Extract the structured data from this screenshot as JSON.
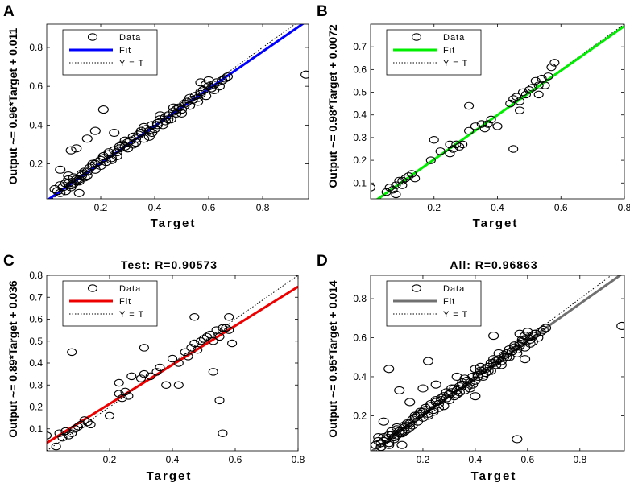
{
  "figure": {
    "legend_labels": [
      "Data",
      "Fit",
      "Y = T"
    ]
  },
  "chart_data": [
    {
      "panel": "A",
      "type": "scatter",
      "title": "",
      "xlabel": "Target",
      "ylabel": "Output ~= 0.96*Target + 0.011",
      "xlim": [
        0.0,
        0.97
      ],
      "ylim": [
        0.02,
        0.92
      ],
      "xticks": [
        0.2,
        0.4,
        0.6,
        0.8
      ],
      "yticks": [
        0.2,
        0.4,
        0.6,
        0.8
      ],
      "fit": {
        "slope": 0.96,
        "intercept": 0.011,
        "color": "#0000ff"
      },
      "legend": {
        "entries": [
          "Data",
          "Fit",
          "Y = T"
        ],
        "position": "top-left"
      },
      "points_mode": "dense",
      "points_x": [
        0.03,
        0.04,
        0.05,
        0.06,
        0.07,
        0.07,
        0.08,
        0.09,
        0.1,
        0.1,
        0.11,
        0.12,
        0.13,
        0.13,
        0.14,
        0.15,
        0.16,
        0.17,
        0.18,
        0.19,
        0.2,
        0.21,
        0.22,
        0.23,
        0.24,
        0.25,
        0.26,
        0.27,
        0.28,
        0.29,
        0.3,
        0.31,
        0.32,
        0.33,
        0.34,
        0.35,
        0.36,
        0.37,
        0.38,
        0.39,
        0.4,
        0.41,
        0.42,
        0.43,
        0.44,
        0.45,
        0.46,
        0.47,
        0.48,
        0.49,
        0.5,
        0.51,
        0.52,
        0.53,
        0.54,
        0.55,
        0.56,
        0.57,
        0.58,
        0.59,
        0.6,
        0.61,
        0.62,
        0.63,
        0.64,
        0.65,
        0.66,
        0.67,
        0.05,
        0.08,
        0.11,
        0.14,
        0.17,
        0.2,
        0.23,
        0.26,
        0.29,
        0.32,
        0.35,
        0.38,
        0.41,
        0.44,
        0.47,
        0.5,
        0.53,
        0.56,
        0.59,
        0.62,
        0.09,
        0.12,
        0.15,
        0.18,
        0.21,
        0.24,
        0.27,
        0.3,
        0.33,
        0.36,
        0.39,
        0.42,
        0.45,
        0.48,
        0.51,
        0.54,
        0.57,
        0.6
      ],
      "points_y": [
        0.07,
        0.06,
        0.09,
        0.08,
        0.1,
        0.06,
        0.12,
        0.09,
        0.13,
        0.1,
        0.11,
        0.12,
        0.14,
        0.15,
        0.13,
        0.16,
        0.18,
        0.2,
        0.17,
        0.21,
        0.22,
        0.24,
        0.21,
        0.25,
        0.23,
        0.27,
        0.26,
        0.28,
        0.3,
        0.29,
        0.31,
        0.32,
        0.34,
        0.31,
        0.35,
        0.36,
        0.33,
        0.38,
        0.37,
        0.4,
        0.38,
        0.41,
        0.43,
        0.4,
        0.44,
        0.45,
        0.43,
        0.47,
        0.46,
        0.49,
        0.48,
        0.5,
        0.52,
        0.5,
        0.53,
        0.55,
        0.54,
        0.56,
        0.58,
        0.55,
        0.6,
        0.59,
        0.61,
        0.62,
        0.6,
        0.63,
        0.64,
        0.65,
        0.05,
        0.1,
        0.12,
        0.16,
        0.19,
        0.19,
        0.26,
        0.24,
        0.32,
        0.3,
        0.37,
        0.34,
        0.4,
        0.42,
        0.49,
        0.46,
        0.54,
        0.52,
        0.61,
        0.58,
        0.08,
        0.11,
        0.14,
        0.2,
        0.23,
        0.22,
        0.29,
        0.28,
        0.33,
        0.39,
        0.36,
        0.45,
        0.43,
        0.48,
        0.51,
        0.53,
        0.57,
        0.63
      ],
      "outliers": [
        [
          0.09,
          0.27
        ],
        [
          0.15,
          0.33
        ],
        [
          0.21,
          0.48
        ],
        [
          0.05,
          0.17
        ],
        [
          0.11,
          0.28
        ],
        [
          0.18,
          0.37
        ],
        [
          0.25,
          0.36
        ],
        [
          0.12,
          0.05
        ],
        [
          0.08,
          0.14
        ],
        [
          0.96,
          0.66
        ],
        [
          0.57,
          0.62
        ]
      ]
    },
    {
      "panel": "B",
      "type": "scatter",
      "title": "",
      "xlabel": "Target",
      "ylabel": "Output ~= 0.98*Target + 0.0072",
      "xlim": [
        0.0,
        0.8
      ],
      "ylim": [
        0.03,
        0.8
      ],
      "xticks": [
        0.2,
        0.4,
        0.6,
        0.8
      ],
      "yticks": [
        0.1,
        0.2,
        0.3,
        0.4,
        0.5,
        0.6,
        0.7
      ],
      "fit": {
        "slope": 0.98,
        "intercept": 0.0072,
        "color": "#00ee00"
      },
      "legend": {
        "entries": [
          "Data",
          "Fit",
          "Y = T"
        ],
        "position": "top-left"
      },
      "points_mode": "sparse",
      "points_x": [
        0.05,
        0.06,
        0.07,
        0.08,
        0.09,
        0.1,
        0.11,
        0.12,
        0.13,
        0.14,
        0.19,
        0.22,
        0.25,
        0.26,
        0.28,
        0.29,
        0.31,
        0.33,
        0.35,
        0.36,
        0.37,
        0.38,
        0.44,
        0.45,
        0.46,
        0.47,
        0.48,
        0.49,
        0.5,
        0.51,
        0.52,
        0.53,
        0.54,
        0.55,
        0.56,
        0.57,
        0.58
      ],
      "points_y": [
        0.06,
        0.08,
        0.07,
        0.09,
        0.11,
        0.09,
        0.12,
        0.13,
        0.14,
        0.12,
        0.2,
        0.24,
        0.23,
        0.25,
        0.26,
        0.27,
        0.33,
        0.35,
        0.36,
        0.34,
        0.36,
        0.38,
        0.45,
        0.47,
        0.48,
        0.46,
        0.5,
        0.49,
        0.51,
        0.52,
        0.55,
        0.53,
        0.56,
        0.53,
        0.57,
        0.61,
        0.63
      ],
      "outliers": [
        [
          0.0,
          0.08
        ],
        [
          0.08,
          0.05
        ],
        [
          0.1,
          0.11
        ],
        [
          0.25,
          0.27
        ],
        [
          0.2,
          0.29
        ],
        [
          0.31,
          0.44
        ],
        [
          0.27,
          0.27
        ],
        [
          0.45,
          0.25
        ],
        [
          0.4,
          0.35
        ],
        [
          0.47,
          0.42
        ],
        [
          0.53,
          0.49
        ]
      ]
    },
    {
      "panel": "C",
      "type": "scatter",
      "title": "Test: R=0.90573",
      "xlabel": "Target",
      "ylabel": "Output ~= 0.89*Target + 0.036",
      "xlim": [
        0.0,
        0.8
      ],
      "ylim": [
        0.0,
        0.8
      ],
      "xticks": [
        0.2,
        0.4,
        0.6,
        0.8
      ],
      "yticks": [
        0.1,
        0.2,
        0.3,
        0.4,
        0.5,
        0.6,
        0.7,
        0.8
      ],
      "fit": {
        "slope": 0.89,
        "intercept": 0.036,
        "color": "#ee0000"
      },
      "legend": {
        "entries": [
          "Data",
          "Fit",
          "Y = T"
        ],
        "position": "top-left"
      },
      "points_mode": "sparse",
      "points_x": [
        0.04,
        0.05,
        0.06,
        0.07,
        0.08,
        0.09,
        0.1,
        0.11,
        0.12,
        0.13,
        0.14,
        0.23,
        0.24,
        0.25,
        0.26,
        0.3,
        0.31,
        0.33,
        0.35,
        0.36,
        0.38,
        0.4,
        0.42,
        0.44,
        0.45,
        0.46,
        0.47,
        0.48,
        0.49,
        0.5,
        0.51,
        0.52,
        0.53,
        0.54,
        0.55,
        0.56,
        0.57,
        0.58
      ],
      "points_y": [
        0.08,
        0.06,
        0.09,
        0.07,
        0.08,
        0.1,
        0.11,
        0.12,
        0.14,
        0.13,
        0.12,
        0.26,
        0.24,
        0.27,
        0.25,
        0.33,
        0.35,
        0.34,
        0.36,
        0.38,
        0.3,
        0.42,
        0.4,
        0.45,
        0.43,
        0.47,
        0.49,
        0.46,
        0.5,
        0.51,
        0.52,
        0.53,
        0.5,
        0.55,
        0.52,
        0.56,
        0.56,
        0.55
      ],
      "outliers": [
        [
          0.0,
          0.07
        ],
        [
          0.03,
          0.02
        ],
        [
          0.08,
          0.45
        ],
        [
          0.2,
          0.16
        ],
        [
          0.23,
          0.31
        ],
        [
          0.27,
          0.34
        ],
        [
          0.31,
          0.47
        ],
        [
          0.42,
          0.3
        ],
        [
          0.47,
          0.61
        ],
        [
          0.53,
          0.36
        ],
        [
          0.56,
          0.08
        ],
        [
          0.58,
          0.61
        ],
        [
          0.59,
          0.49
        ],
        [
          0.55,
          0.23
        ]
      ]
    },
    {
      "panel": "D",
      "type": "scatter",
      "title": "All: R=0.96863",
      "xlabel": "Target",
      "ylabel": "Output ~= 0.95*Target + 0.014",
      "xlim": [
        0.0,
        0.97
      ],
      "ylim": [
        0.02,
        0.92
      ],
      "xticks": [
        0.2,
        0.4,
        0.6,
        0.8
      ],
      "yticks": [
        0.2,
        0.4,
        0.6,
        0.8
      ],
      "fit": {
        "slope": 0.95,
        "intercept": 0.014,
        "color": "#707070"
      },
      "legend": {
        "entries": [
          "Data",
          "Fit",
          "Y = T"
        ],
        "position": "top-left"
      },
      "points_mode": "dense",
      "points_x": [
        0.02,
        0.03,
        0.04,
        0.05,
        0.06,
        0.07,
        0.07,
        0.08,
        0.09,
        0.1,
        0.1,
        0.11,
        0.12,
        0.13,
        0.13,
        0.14,
        0.15,
        0.16,
        0.17,
        0.18,
        0.19,
        0.2,
        0.21,
        0.22,
        0.23,
        0.24,
        0.25,
        0.26,
        0.27,
        0.28,
        0.29,
        0.3,
        0.31,
        0.32,
        0.33,
        0.34,
        0.35,
        0.36,
        0.37,
        0.38,
        0.39,
        0.4,
        0.41,
        0.42,
        0.43,
        0.44,
        0.45,
        0.46,
        0.47,
        0.48,
        0.49,
        0.5,
        0.51,
        0.52,
        0.53,
        0.54,
        0.55,
        0.56,
        0.57,
        0.58,
        0.59,
        0.6,
        0.61,
        0.62,
        0.63,
        0.64,
        0.65,
        0.66,
        0.67,
        0.04,
        0.06,
        0.08,
        0.11,
        0.14,
        0.17,
        0.2,
        0.23,
        0.26,
        0.29,
        0.32,
        0.35,
        0.38,
        0.41,
        0.44,
        0.47,
        0.5,
        0.53,
        0.56,
        0.59,
        0.62,
        0.05,
        0.09,
        0.12,
        0.15,
        0.18,
        0.21,
        0.24,
        0.27,
        0.3,
        0.33,
        0.36,
        0.39,
        0.42,
        0.45,
        0.48,
        0.51,
        0.54,
        0.57,
        0.6,
        0.63,
        0.03,
        0.07,
        0.1,
        0.13,
        0.16,
        0.19,
        0.22,
        0.25,
        0.28,
        0.31,
        0.34,
        0.37,
        0.4,
        0.43,
        0.46,
        0.49,
        0.52,
        0.55,
        0.58,
        0.61
      ],
      "points_y": [
        0.05,
        0.07,
        0.06,
        0.09,
        0.08,
        0.1,
        0.06,
        0.12,
        0.09,
        0.13,
        0.1,
        0.11,
        0.12,
        0.14,
        0.15,
        0.13,
        0.16,
        0.18,
        0.2,
        0.17,
        0.21,
        0.22,
        0.24,
        0.21,
        0.25,
        0.23,
        0.27,
        0.26,
        0.28,
        0.3,
        0.29,
        0.31,
        0.32,
        0.34,
        0.31,
        0.35,
        0.36,
        0.33,
        0.38,
        0.37,
        0.4,
        0.38,
        0.41,
        0.43,
        0.4,
        0.44,
        0.45,
        0.43,
        0.47,
        0.46,
        0.49,
        0.48,
        0.5,
        0.52,
        0.5,
        0.53,
        0.55,
        0.54,
        0.56,
        0.58,
        0.55,
        0.6,
        0.59,
        0.61,
        0.62,
        0.6,
        0.63,
        0.64,
        0.65,
        0.04,
        0.08,
        0.1,
        0.12,
        0.16,
        0.19,
        0.19,
        0.26,
        0.24,
        0.32,
        0.3,
        0.37,
        0.34,
        0.4,
        0.42,
        0.49,
        0.46,
        0.54,
        0.52,
        0.61,
        0.58,
        0.07,
        0.08,
        0.11,
        0.14,
        0.2,
        0.23,
        0.22,
        0.29,
        0.28,
        0.33,
        0.39,
        0.36,
        0.45,
        0.43,
        0.48,
        0.51,
        0.53,
        0.57,
        0.63,
        0.62,
        0.09,
        0.05,
        0.14,
        0.12,
        0.15,
        0.22,
        0.2,
        0.28,
        0.25,
        0.34,
        0.32,
        0.35,
        0.44,
        0.41,
        0.47,
        0.52,
        0.5,
        0.56,
        0.59,
        0.57
      ],
      "outliers": [
        [
          0.07,
          0.44
        ],
        [
          0.11,
          0.33
        ],
        [
          0.15,
          0.27
        ],
        [
          0.2,
          0.34
        ],
        [
          0.22,
          0.48
        ],
        [
          0.25,
          0.36
        ],
        [
          0.05,
          0.17
        ],
        [
          0.12,
          0.05
        ],
        [
          0.96,
          0.66
        ],
        [
          0.56,
          0.08
        ],
        [
          0.57,
          0.62
        ],
        [
          0.33,
          0.4
        ],
        [
          0.4,
          0.3
        ],
        [
          0.59,
          0.49
        ],
        [
          0.47,
          0.61
        ]
      ]
    }
  ]
}
